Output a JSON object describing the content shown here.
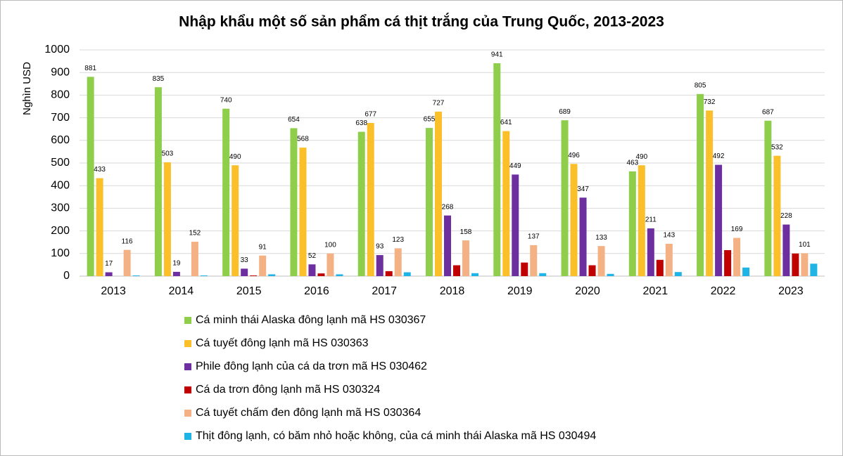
{
  "chart_data": {
    "type": "bar",
    "title": "Nhập khẩu một số sản phẩm cá thịt trắng của Trung Quốc, 2013-2023",
    "y_label": "Nghìn USD",
    "categories": [
      "2013",
      "2014",
      "2015",
      "2016",
      "2017",
      "2018",
      "2019",
      "2020",
      "2021",
      "2022",
      "2023"
    ],
    "ylim": [
      0,
      1000
    ],
    "yticks": [
      0,
      100,
      200,
      300,
      400,
      500,
      600,
      700,
      800,
      900,
      1000
    ],
    "grid": true,
    "series": [
      {
        "name": "Cá minh thái Alaska đông lạnh mã HS 030367",
        "color": "#8fce4a",
        "data_labels": true,
        "values": [
          881,
          835,
          740,
          654,
          638,
          655,
          941,
          689,
          463,
          805,
          687
        ]
      },
      {
        "name": "Cá tuyết đông lạnh mã HS 030363",
        "color": "#fbbf2a",
        "data_labels": true,
        "values": [
          433,
          503,
          490,
          568,
          677,
          727,
          641,
          496,
          490,
          732,
          532
        ]
      },
      {
        "name": "Phile đông lạnh của cá da trơn mã HS 030462",
        "color": "#6d2fa0",
        "data_labels": true,
        "values": [
          17,
          19,
          33,
          52,
          93,
          268,
          449,
          347,
          211,
          492,
          228
        ]
      },
      {
        "name": "Cá da trơn đông lạnh mã HS 030324",
        "color": "#c00000",
        "data_labels": false,
        "values": [
          0,
          0,
          3,
          12,
          22,
          48,
          60,
          48,
          72,
          115,
          100
        ]
      },
      {
        "name": "Cá tuyết chấm đen đông lạnh mã HS 030364",
        "color": "#f4b183",
        "data_labels": true,
        "values": [
          116,
          152,
          91,
          100,
          123,
          158,
          137,
          133,
          143,
          169,
          101
        ]
      },
      {
        "name": "Thịt đông lạnh, có băm nhỏ hoặc không, của cá minh thái Alaska mã HS 030494",
        "color": "#1fb4e6",
        "data_labels": false,
        "values": [
          3,
          3,
          8,
          8,
          17,
          13,
          13,
          10,
          18,
          38,
          55
        ]
      }
    ]
  }
}
